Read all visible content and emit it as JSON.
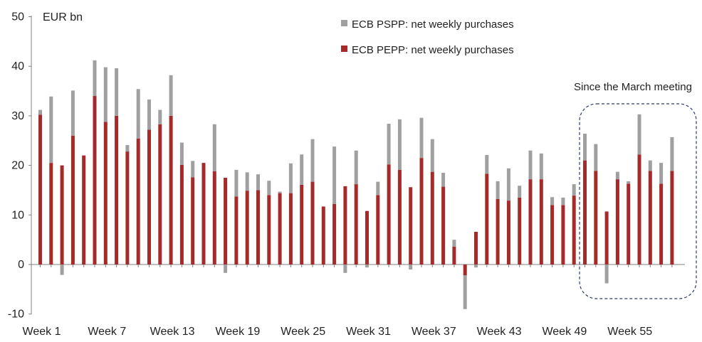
{
  "chart_data": {
    "type": "bar",
    "stacked": true,
    "ylabel": "EUR bn",
    "ylim": [
      -10,
      50
    ],
    "yticks": [
      -10,
      0,
      10,
      20,
      30,
      40,
      50
    ],
    "x_tick_labels": [
      "Week 1",
      "Week 7",
      "Week 13",
      "Week 19",
      "Week 25",
      "Week 31",
      "Week 37",
      "Week 43",
      "Week 49",
      "Week 55"
    ],
    "categories": [
      1,
      2,
      3,
      4,
      5,
      6,
      7,
      8,
      9,
      10,
      11,
      12,
      13,
      14,
      15,
      16,
      17,
      18,
      19,
      20,
      21,
      22,
      23,
      24,
      25,
      26,
      27,
      28,
      29,
      30,
      31,
      32,
      33,
      34,
      35,
      36,
      37,
      38,
      39,
      40,
      41,
      42,
      43,
      44,
      45,
      46,
      47,
      48,
      49,
      50,
      51,
      52,
      53,
      54,
      55,
      56,
      57,
      58,
      59
    ],
    "series": [
      {
        "name": "ECB PEPP: net weekly purchases",
        "color": "#a52a2a",
        "values": [
          30.2,
          20.5,
          20.0,
          26.0,
          22.0,
          34.0,
          28.8,
          30.0,
          22.8,
          25.4,
          27.2,
          28.3,
          30.0,
          20.1,
          17.6,
          20.5,
          18.8,
          17.5,
          13.7,
          14.9,
          15.0,
          14.0,
          14.4,
          14.4,
          16.1,
          16.7,
          11.7,
          12.2,
          15.8,
          16.2,
          10.8,
          14.0,
          20.2,
          19.1,
          15.6,
          21.5,
          18.7,
          15.7,
          3.6,
          -2.2,
          6.6,
          18.3,
          13.2,
          12.9,
          13.5,
          17.2,
          17.2,
          12.0,
          12.0,
          13.9,
          21.0,
          18.9,
          10.7,
          17.2,
          16.3,
          22.2,
          18.9,
          16.3,
          18.9
        ]
      },
      {
        "name": "ECB PSPP: net weekly purchases",
        "color": "#a0a0a0",
        "values": [
          1.0,
          13.4,
          -2.1,
          9.1,
          0.0,
          7.2,
          11.0,
          9.6,
          1.3,
          10.0,
          6.1,
          2.9,
          8.2,
          4.5,
          3.3,
          0.0,
          9.5,
          -1.7,
          5.4,
          3.7,
          3.2,
          2.9,
          0.3,
          6.0,
          6.1,
          8.6,
          0.0,
          11.6,
          -1.7,
          6.8,
          -0.6,
          2.7,
          8.2,
          10.2,
          -1.0,
          8.1,
          6.6,
          2.8,
          1.4,
          -6.8,
          -0.6,
          3.8,
          3.6,
          6.5,
          2.4,
          5.8,
          5.2,
          1.6,
          1.5,
          2.3,
          5.4,
          5.4,
          -3.8,
          1.5,
          0.5,
          8.1,
          2.1,
          4.2,
          6.8
        ]
      }
    ],
    "annotation": "Since the March meeting",
    "highlight_weeks": [
      51,
      59
    ],
    "gridlines": false,
    "legend_position": "top-center"
  }
}
